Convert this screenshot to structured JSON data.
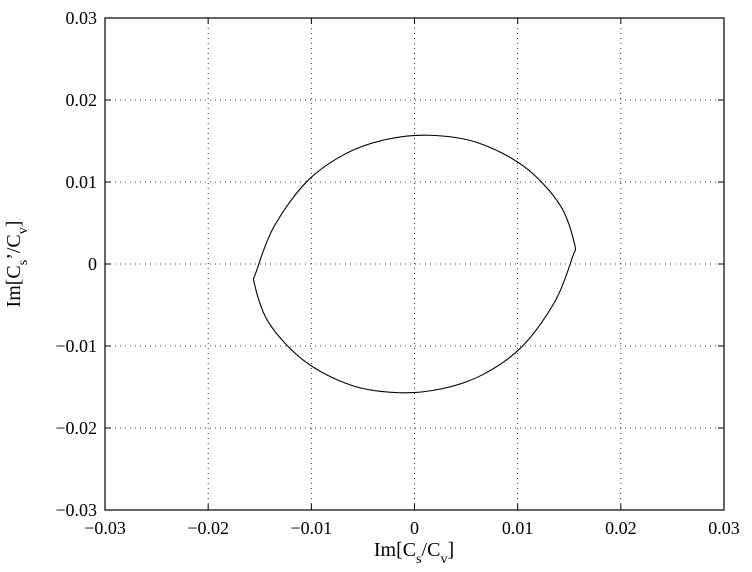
{
  "chart_data": {
    "type": "line",
    "title": "",
    "xlabel": {
      "prefix": "Im[C",
      "sub1": "s",
      "mid": "/C",
      "sub2": "v",
      "suffix": "]"
    },
    "ylabel": {
      "prefix": "Im[C",
      "sub1": "s",
      "mid": "’/C",
      "sub2": "v",
      "suffix": "]"
    },
    "xlim": [
      -0.03,
      0.03
    ],
    "ylim": [
      -0.03,
      0.03
    ],
    "xticks": [
      -0.03,
      -0.02,
      -0.01,
      0,
      0.01,
      0.02,
      0.03
    ],
    "yticks": [
      -0.03,
      -0.02,
      -0.01,
      0,
      0.01,
      0.02,
      0.03
    ],
    "xtick_labels": [
      "−0.03",
      "−0.02",
      "−0.01",
      "0",
      "0.01",
      "0.02",
      "0.03"
    ],
    "ytick_labels": [
      "−0.03",
      "−0.02",
      "−0.01",
      "0",
      "0.01",
      "0.02",
      "0.03"
    ],
    "grid": true,
    "series": [
      {
        "shape": "closed-ellipse",
        "x": [
          0.0155,
          0.0141,
          0.0107,
          0.0061,
          0.0015,
          -0.0027,
          -0.0066,
          -0.0104,
          -0.0136,
          -0.0153,
          -0.0155,
          -0.0141,
          -0.0107,
          -0.0061,
          -0.0015,
          0.0027,
          0.0066,
          0.0104,
          0.0136,
          0.0153,
          0.0155
        ],
        "y": [
          0.0025,
          0.0072,
          0.0118,
          0.0148,
          0.0157,
          0.0152,
          0.0135,
          0.0101,
          0.0046,
          -0.0008,
          -0.0025,
          -0.0072,
          -0.0118,
          -0.0148,
          -0.0157,
          -0.0152,
          -0.0135,
          -0.0101,
          -0.0046,
          0.0008,
          0.0025
        ]
      }
    ]
  }
}
